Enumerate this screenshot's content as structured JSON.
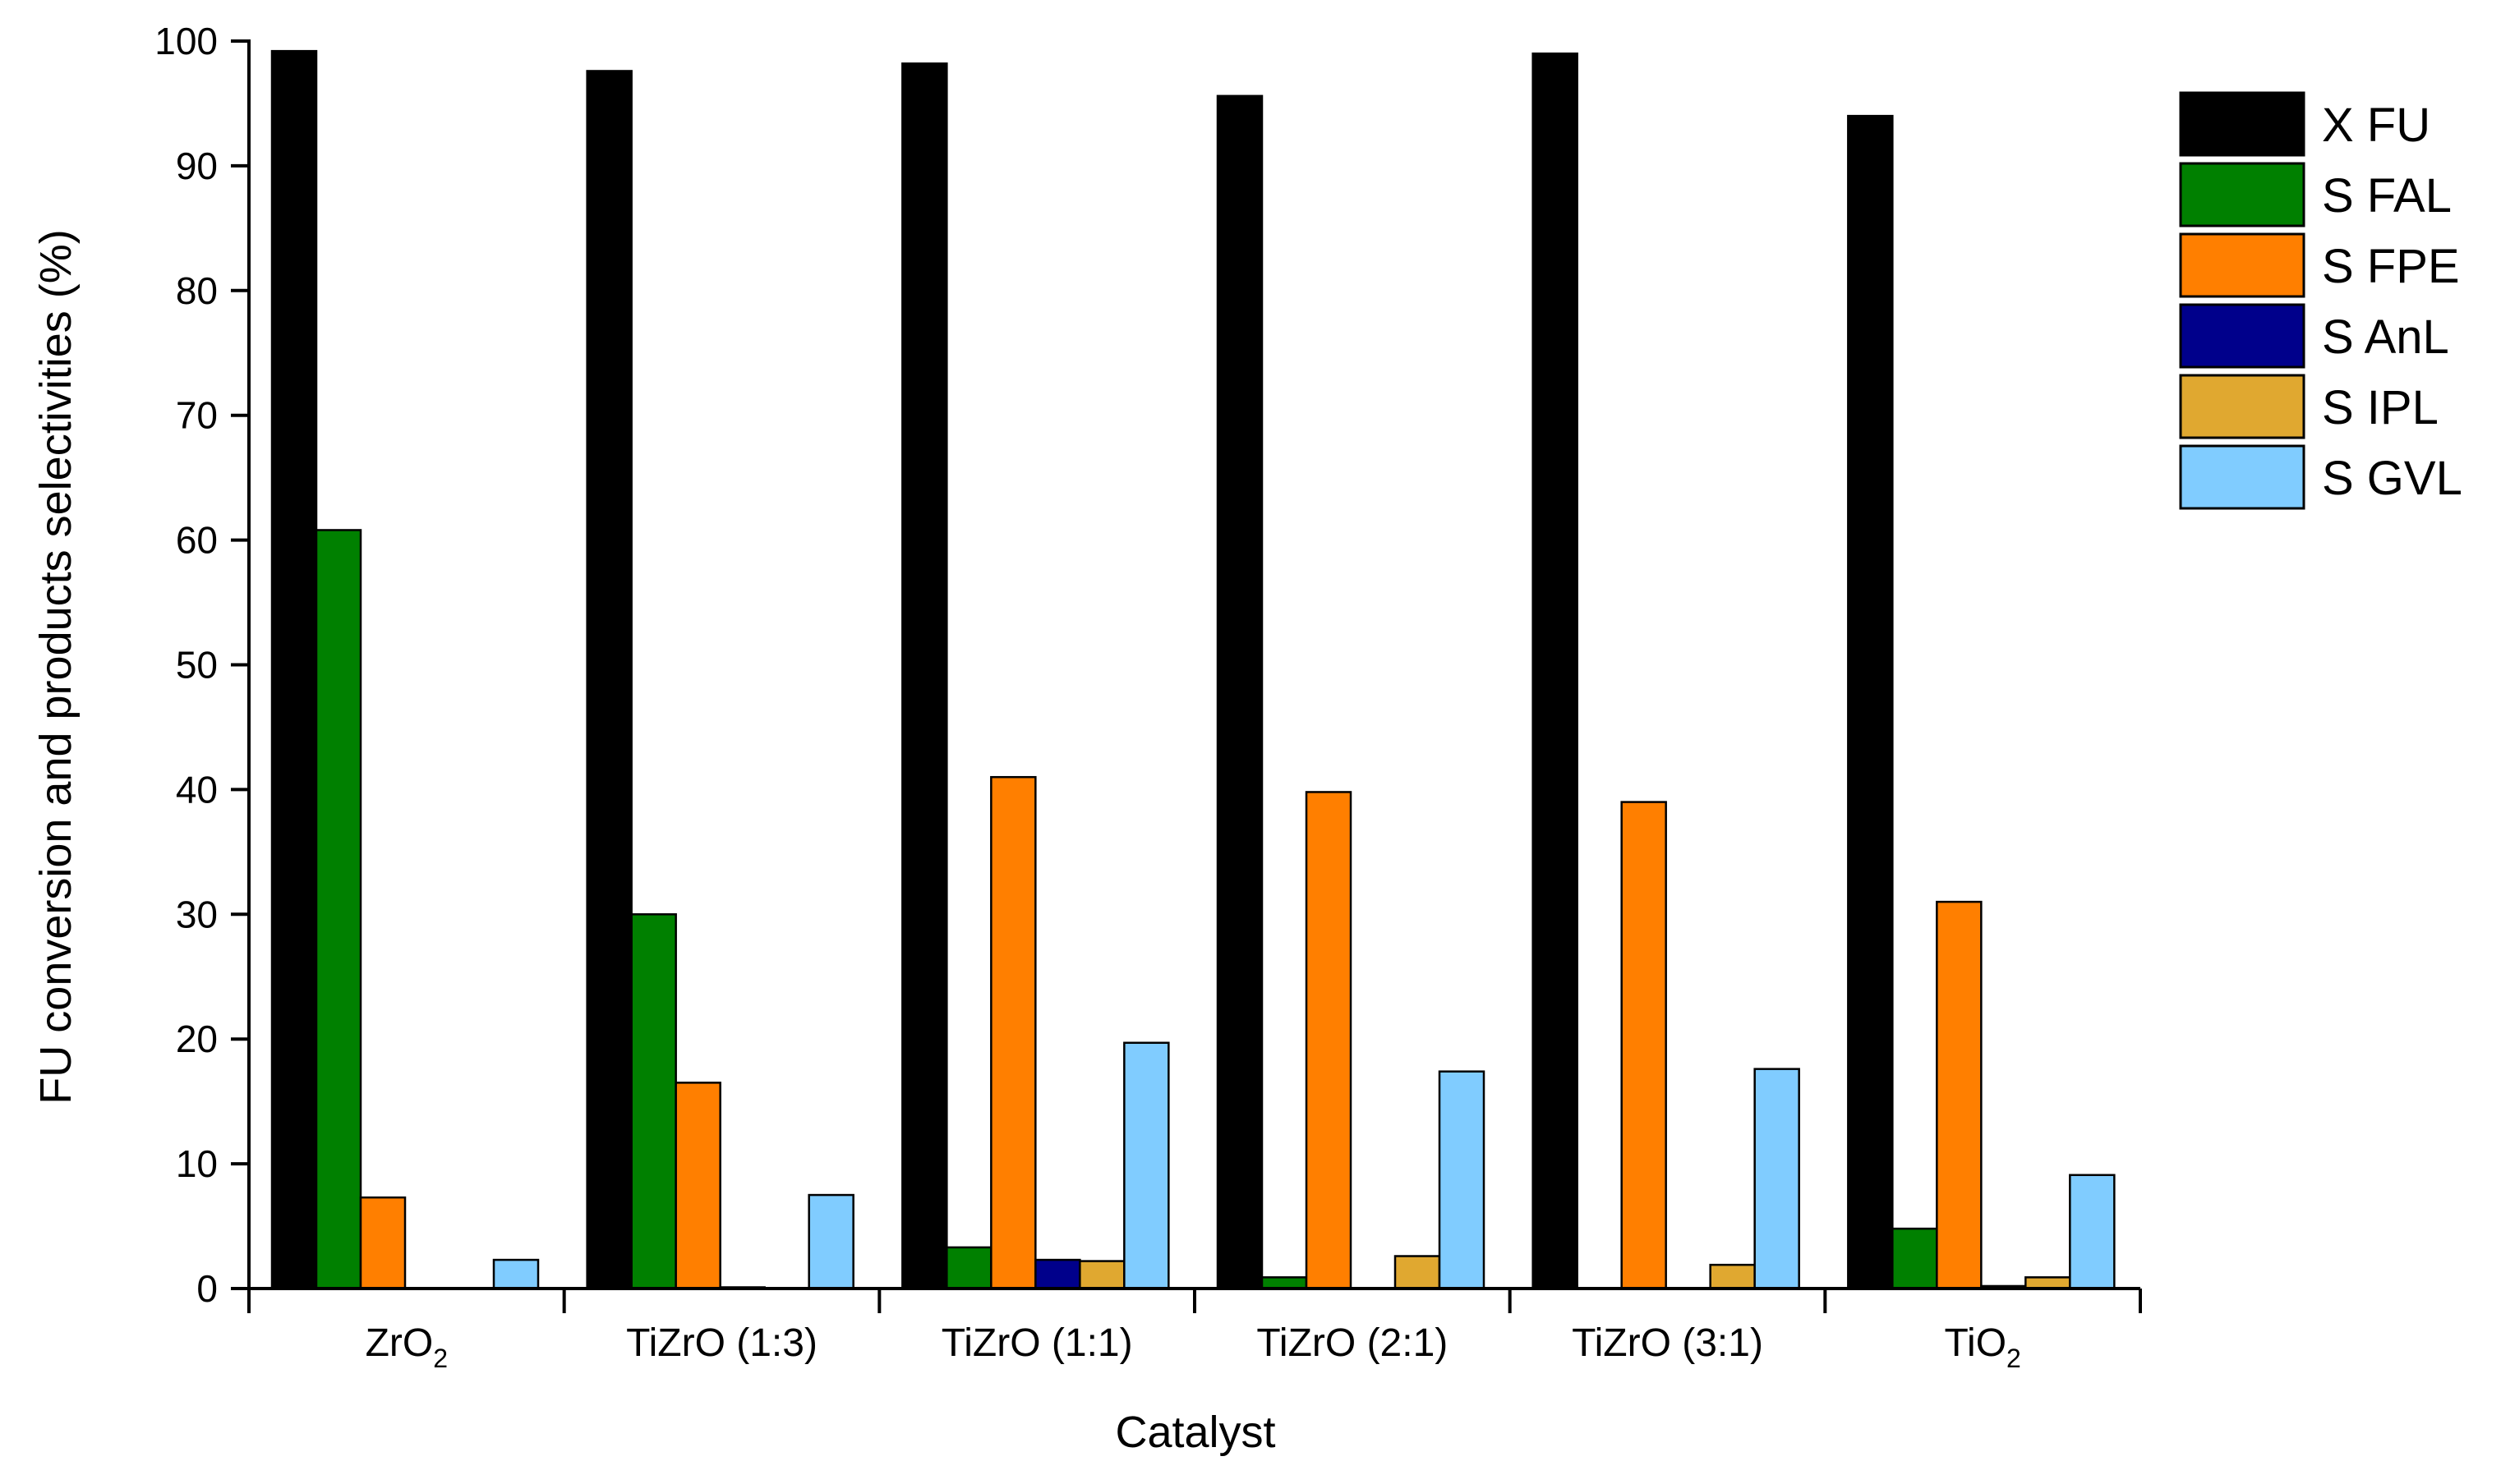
{
  "chart_data": {
    "type": "bar",
    "xlabel": "Catalyst",
    "ylabel": "FU conversion and products selectivities (%)",
    "ylim": [
      0,
      100
    ],
    "yticks": [
      0,
      10,
      20,
      30,
      40,
      50,
      60,
      70,
      80,
      90,
      100
    ],
    "grid": false,
    "legend_position": "top-right",
    "categories": [
      {
        "base": "ZrO",
        "sub": "2"
      },
      {
        "base": "TiZrO (1:3)",
        "sub": ""
      },
      {
        "base": "TiZrO (1:1)",
        "sub": ""
      },
      {
        "base": "TiZrO (2:1)",
        "sub": ""
      },
      {
        "base": "TiZrO (3:1)",
        "sub": ""
      },
      {
        "base": "TiO",
        "sub": "2"
      }
    ],
    "series": [
      {
        "name": "X FU",
        "color": "#000000",
        "values": [
          99.2,
          97.6,
          98.2,
          95.6,
          99.0,
          94.0
        ]
      },
      {
        "name": "S FAL",
        "color": "#008000",
        "values": [
          60.8,
          30.0,
          3.3,
          0.9,
          0.0,
          4.8
        ]
      },
      {
        "name": "S FPE",
        "color": "#ff7f00",
        "values": [
          7.3,
          16.5,
          41.0,
          39.8,
          39.0,
          31.0
        ]
      },
      {
        "name": "S AnL",
        "color": "#00008b",
        "values": [
          0.0,
          0.1,
          2.3,
          0.0,
          0.0,
          0.2
        ]
      },
      {
        "name": "S IPL",
        "color": "#e0a830",
        "values": [
          0.0,
          0.0,
          2.2,
          2.6,
          1.9,
          0.9
        ]
      },
      {
        "name": "S GVL",
        "color": "#80ccff",
        "values": [
          2.3,
          7.5,
          19.7,
          17.4,
          17.6,
          9.1
        ]
      }
    ]
  }
}
